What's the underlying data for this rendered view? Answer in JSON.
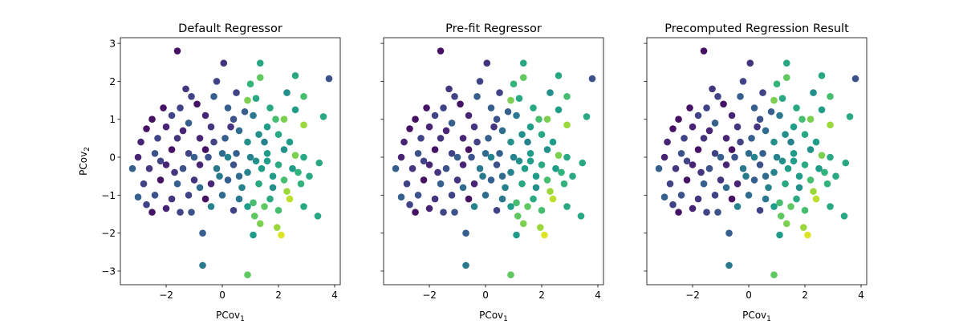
{
  "chart_data": [
    {
      "type": "scatter",
      "title": "Default Regressor",
      "xlabel": "PCov",
      "xlabel_sub": "1",
      "ylabel": "PCov",
      "ylabel_sub": "2",
      "xlim": [
        -3.63,
        4.2
      ],
      "ylim": [
        -3.36,
        3.15
      ],
      "xticks": [
        -2,
        0,
        2,
        4
      ],
      "yticks": [
        -3,
        -2,
        -1,
        0,
        1,
        2,
        3
      ],
      "show_yticklabels": true,
      "colormap": "viridis",
      "grid": false
    },
    {
      "type": "scatter",
      "title": "Pre-fit Regressor",
      "xlabel": "PCov",
      "xlabel_sub": "1",
      "xlim": [
        -3.63,
        4.2
      ],
      "ylim": [
        -3.36,
        3.15
      ],
      "xticks": [
        -2,
        0,
        2,
        4
      ],
      "yticks": [
        -3,
        -2,
        -1,
        0,
        1,
        2,
        3
      ],
      "show_yticklabels": false,
      "colormap": "viridis",
      "grid": false
    },
    {
      "type": "scatter",
      "title": "Precomputed Regression Result",
      "xlabel": "PCov",
      "xlabel_sub": "1",
      "xlim": [
        -3.63,
        4.2
      ],
      "ylim": [
        -3.36,
        3.15
      ],
      "xticks": [
        -2,
        0,
        2,
        4
      ],
      "yticks": [
        -3,
        -2,
        -1,
        0,
        1,
        2,
        3
      ],
      "show_yticklabels": false,
      "colormap": "viridis",
      "grid": false
    }
  ],
  "points_xy_color": [
    [
      -1.6,
      2.8,
      0.05
    ],
    [
      0.05,
      2.48,
      0.15
    ],
    [
      1.35,
      2.48,
      0.6
    ],
    [
      2.6,
      2.15,
      0.6
    ],
    [
      3.8,
      2.07,
      0.25
    ],
    [
      1.35,
      2.1,
      0.75
    ],
    [
      -0.2,
      2.0,
      0.2
    ],
    [
      1.0,
      1.93,
      0.65
    ],
    [
      2.3,
      1.7,
      0.5
    ],
    [
      2.9,
      1.6,
      0.7
    ],
    [
      -1.3,
      1.8,
      0.15
    ],
    [
      -1.1,
      1.6,
      0.2
    ],
    [
      -0.3,
      1.6,
      0.3
    ],
    [
      0.5,
      1.7,
      0.2
    ],
    [
      0.9,
      1.5,
      0.8
    ],
    [
      1.2,
      1.55,
      0.6
    ],
    [
      -2.1,
      1.3,
      0.05
    ],
    [
      -1.5,
      1.3,
      0.2
    ],
    [
      -0.9,
      1.4,
      0.05
    ],
    [
      0.2,
      1.3,
      0.3
    ],
    [
      1.7,
      1.3,
      0.6
    ],
    [
      2.6,
      1.25,
      0.55
    ],
    [
      3.6,
      1.07,
      0.6
    ],
    [
      -2.5,
      1.0,
      0.05
    ],
    [
      -1.8,
      1.1,
      0.2
    ],
    [
      -0.6,
      1.1,
      0.1
    ],
    [
      0.4,
      1.0,
      0.25
    ],
    [
      1.1,
      1.1,
      0.4
    ],
    [
      2.2,
      1.0,
      0.8
    ],
    [
      2.9,
      0.85,
      0.85
    ],
    [
      -2.7,
      0.75,
      0.05
    ],
    [
      -2.0,
      0.8,
      0.1
    ],
    [
      -1.2,
      0.9,
      0.3
    ],
    [
      -0.4,
      0.8,
      0.15
    ],
    [
      0.6,
      0.7,
      0.35
    ],
    [
      1.6,
      0.8,
      0.55
    ],
    [
      2.0,
      0.6,
      0.6
    ],
    [
      -2.9,
      0.4,
      0.1
    ],
    [
      -2.3,
      0.5,
      0.2
    ],
    [
      -1.6,
      0.5,
      0.15
    ],
    [
      -0.8,
      0.5,
      0.1
    ],
    [
      0.1,
      0.5,
      0.3
    ],
    [
      0.9,
      0.4,
      0.5
    ],
    [
      1.5,
      0.4,
      0.45
    ],
    [
      2.4,
      0.4,
      0.55
    ],
    [
      -3.0,
      0.0,
      0.1
    ],
    [
      -2.4,
      0.1,
      0.25
    ],
    [
      -1.8,
      0.2,
      0.05
    ],
    [
      -1.2,
      0.1,
      0.2
    ],
    [
      -0.6,
      0.2,
      0.05
    ],
    [
      0.0,
      0.1,
      0.35
    ],
    [
      0.5,
      0.1,
      0.3
    ],
    [
      1.0,
      0.0,
      0.45
    ],
    [
      1.6,
      0.1,
      0.55
    ],
    [
      2.2,
      0.2,
      0.5
    ],
    [
      2.6,
      0.05,
      0.8
    ],
    [
      2.9,
      0.0,
      0.6
    ],
    [
      -3.2,
      -0.3,
      0.3
    ],
    [
      -2.6,
      -0.3,
      0.15
    ],
    [
      -2.0,
      -0.2,
      0.1
    ],
    [
      -1.4,
      -0.3,
      0.25
    ],
    [
      -0.8,
      -0.2,
      0.1
    ],
    [
      -0.2,
      -0.3,
      0.4
    ],
    [
      0.4,
      -0.2,
      0.25
    ],
    [
      0.9,
      -0.4,
      0.45
    ],
    [
      1.4,
      -0.3,
      0.55
    ],
    [
      2.0,
      -0.2,
      0.6
    ],
    [
      2.5,
      -0.3,
      0.55
    ],
    [
      3.1,
      -0.5,
      0.6
    ],
    [
      3.45,
      -0.15,
      0.6
    ],
    [
      -2.8,
      -0.7,
      0.2
    ],
    [
      -2.2,
      -0.6,
      0.05
    ],
    [
      -1.6,
      -0.7,
      0.3
    ],
    [
      -1.0,
      -0.6,
      0.15
    ],
    [
      -0.4,
      -0.7,
      0.1
    ],
    [
      0.2,
      -0.6,
      0.3
    ],
    [
      0.7,
      -0.8,
      0.45
    ],
    [
      1.3,
      -0.7,
      0.6
    ],
    [
      1.8,
      -0.8,
      0.5
    ],
    [
      2.3,
      -0.9,
      0.85
    ],
    [
      2.8,
      -0.7,
      0.65
    ],
    [
      -3.0,
      -1.05,
      0.3
    ],
    [
      -2.4,
      -1.0,
      0.25
    ],
    [
      -1.8,
      -1.1,
      0.15
    ],
    [
      -1.2,
      -1.0,
      0.2
    ],
    [
      -0.6,
      -1.1,
      0.05
    ],
    [
      0.0,
      -1.0,
      0.35
    ],
    [
      0.6,
      -1.1,
      0.4
    ],
    [
      1.1,
      -1.2,
      0.7
    ],
    [
      1.7,
      -1.1,
      0.6
    ],
    [
      2.4,
      -1.1,
      0.9
    ],
    [
      -2.7,
      -1.25,
      0.2
    ],
    [
      -2.0,
      -1.35,
      0.1
    ],
    [
      -1.5,
      -1.45,
      0.2
    ],
    [
      -2.5,
      -1.45,
      0.05
    ],
    [
      -1.1,
      -1.45,
      0.25
    ],
    [
      -0.4,
      -1.3,
      0.45
    ],
    [
      0.4,
      -1.4,
      0.2
    ],
    [
      0.9,
      -1.3,
      0.55
    ],
    [
      1.5,
      -1.3,
      0.75
    ],
    [
      2.0,
      -1.4,
      0.7
    ],
    [
      2.9,
      -1.3,
      0.6
    ],
    [
      3.4,
      -1.55,
      0.6
    ],
    [
      1.15,
      -1.55,
      0.75
    ],
    [
      1.35,
      -1.75,
      0.8
    ],
    [
      1.95,
      -1.85,
      0.85
    ],
    [
      1.1,
      -2.05,
      0.55
    ],
    [
      2.1,
      -2.05,
      0.95
    ],
    [
      -0.7,
      -2.0,
      0.3
    ],
    [
      -0.7,
      -2.85,
      0.4
    ],
    [
      0.9,
      -3.1,
      0.75
    ],
    [
      -1.0,
      0.0,
      0.3
    ],
    [
      -0.3,
      0.4,
      0.2
    ],
    [
      0.3,
      0.8,
      0.15
    ],
    [
      1.3,
      0.6,
      0.5
    ],
    [
      -0.1,
      -0.5,
      0.4
    ],
    [
      0.6,
      -0.5,
      0.35
    ],
    [
      1.2,
      -0.1,
      0.5
    ],
    [
      1.8,
      -0.5,
      0.55
    ],
    [
      -1.4,
      0.7,
      0.1
    ],
    [
      -2.2,
      -0.1,
      0.2
    ],
    [
      0.8,
      1.2,
      0.3
    ],
    [
      -0.8,
      -0.8,
      0.35
    ],
    [
      2.2,
      -0.6,
      0.7
    ],
    [
      1.6,
      -0.1,
      0.55
    ],
    [
      -1.7,
      -0.4,
      0.15
    ],
    [
      0.2,
      0.0,
      0.45
    ],
    [
      -0.5,
      0.0,
      0.25
    ],
    [
      2.7,
      -0.4,
      0.65
    ],
    [
      1.9,
      1.0,
      0.7
    ]
  ]
}
